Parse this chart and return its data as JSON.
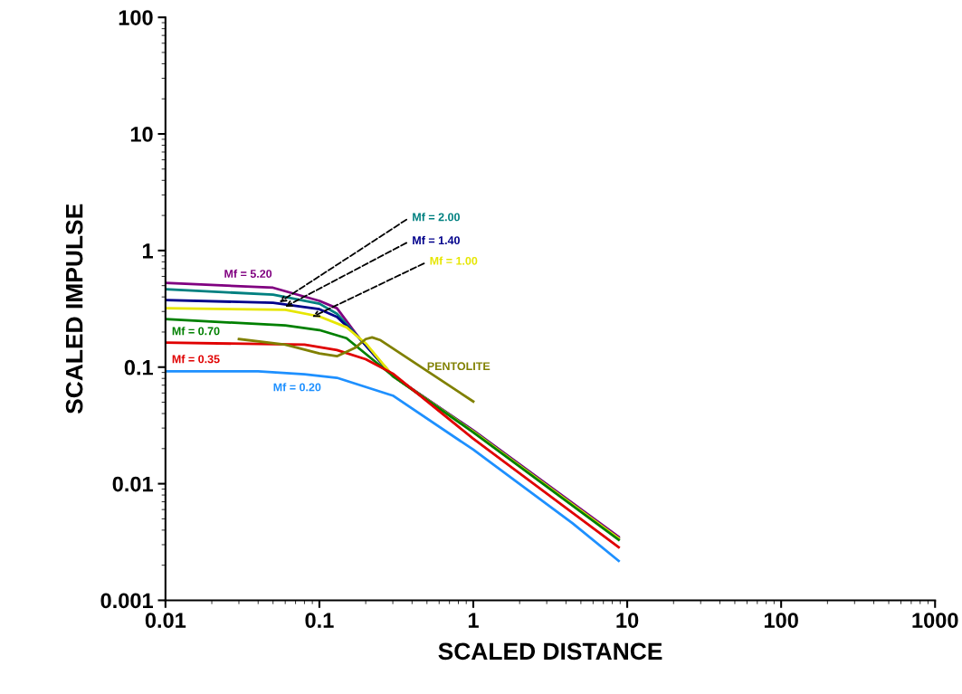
{
  "chart_data": {
    "type": "line",
    "xlabel": "SCALED DISTANCE",
    "ylabel": "SCALED IMPULSE",
    "log": "xy",
    "grid": false,
    "legend": false,
    "xlim": [
      0.01,
      1000
    ],
    "ylim": [
      0.001,
      100
    ],
    "xticks": [
      0.01,
      0.1,
      1,
      10,
      100,
      1000
    ],
    "yticks": [
      0.001,
      0.01,
      0.1,
      1,
      10,
      100
    ],
    "series": [
      {
        "name": "Mf = 5.20",
        "color": "#800080",
        "x": [
          0.01,
          0.05,
          0.1,
          0.13,
          0.18,
          0.3,
          1,
          8.8
        ],
        "values": [
          0.527,
          0.48,
          0.37,
          0.32,
          0.18,
          0.084,
          0.0287,
          0.0035
        ]
      },
      {
        "name": "Mf = 2.00",
        "color": "#008080",
        "x": [
          0.01,
          0.05,
          0.1,
          0.13,
          0.18,
          0.3
        ],
        "values": [
          0.466,
          0.418,
          0.35,
          0.287,
          0.18,
          0.084
        ]
      },
      {
        "name": "Mf = 1.40",
        "color": "#00008b",
        "x": [
          0.01,
          0.05,
          0.1,
          0.13,
          0.18,
          0.3,
          1,
          8.8
        ],
        "values": [
          0.376,
          0.356,
          0.314,
          0.27,
          0.18,
          0.084,
          0.0283,
          0.0034
        ]
      },
      {
        "name": "Mf = 1.00",
        "color": "#e6e600",
        "x": [
          0.01,
          0.06,
          0.1,
          0.15,
          0.2,
          0.3,
          1,
          8.8
        ],
        "values": [
          0.32,
          0.31,
          0.272,
          0.22,
          0.16,
          0.084,
          0.028,
          0.0034
        ]
      },
      {
        "name": "Mf = 0.70",
        "color": "#008000",
        "x": [
          0.01,
          0.06,
          0.1,
          0.15,
          0.3,
          1,
          8.8
        ],
        "values": [
          0.258,
          0.228,
          0.208,
          0.177,
          0.084,
          0.0276,
          0.0033
        ]
      },
      {
        "name": "Mf = 0.35",
        "color": "#e00000",
        "x": [
          0.01,
          0.08,
          0.13,
          0.2,
          0.3,
          1,
          8.8
        ],
        "values": [
          0.162,
          0.156,
          0.14,
          0.117,
          0.088,
          0.0243,
          0.00285
        ]
      },
      {
        "name": "Mf = 0.20",
        "color": "#1e90ff",
        "x": [
          0.01,
          0.04,
          0.08,
          0.13,
          0.3,
          1,
          4.4,
          8.8
        ],
        "values": [
          0.092,
          0.092,
          0.087,
          0.081,
          0.057,
          0.0196,
          0.0046,
          0.00218
        ]
      },
      {
        "name": "PENTOLITE",
        "color": "#808000",
        "x": [
          0.03,
          0.06,
          0.1,
          0.13,
          0.17,
          0.2,
          0.22,
          0.25,
          1
        ],
        "values": [
          0.174,
          0.156,
          0.131,
          0.124,
          0.146,
          0.174,
          0.18,
          0.17,
          0.0507
        ]
      }
    ]
  }
}
